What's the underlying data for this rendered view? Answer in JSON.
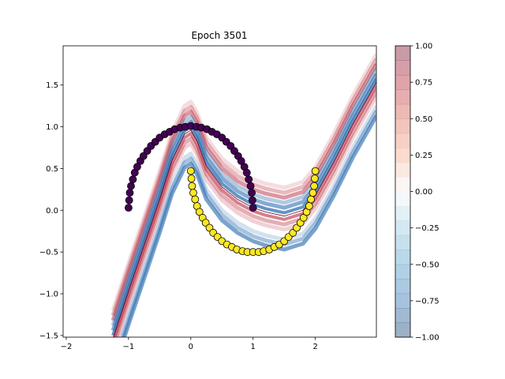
{
  "chart_data": [
    {
      "type": "scatter",
      "title": "Epoch 3501",
      "xlabel": "",
      "ylabel": "",
      "xlim": [
        -2.05,
        2.98
      ],
      "ylim": [
        -1.52,
        1.97
      ],
      "xticks": [
        -2,
        -1,
        0,
        1,
        2
      ],
      "xtick_labels": [
        "−2",
        "−1",
        "0",
        "1",
        "2"
      ],
      "yticks": [
        -1.5,
        -1.0,
        -0.5,
        0.0,
        0.5,
        1.0,
        1.5
      ],
      "ytick_labels": [
        "−1.5",
        "−1.0",
        "−0.5",
        "0.0",
        "0.5",
        "1.0",
        "1.5"
      ],
      "grid": false,
      "series": [
        {
          "marker_color": "#440154",
          "x": [
            -1.0,
            -0.99,
            -0.98,
            -0.96,
            -0.93,
            -0.9,
            -0.86,
            -0.81,
            -0.76,
            -0.7,
            -0.64,
            -0.57,
            -0.5,
            -0.42,
            -0.34,
            -0.26,
            -0.17,
            -0.09,
            0.0,
            0.09,
            0.17,
            0.26,
            0.34,
            0.42,
            0.5,
            0.57,
            0.64,
            0.7,
            0.76,
            0.81,
            0.86,
            0.9,
            0.93,
            0.96,
            0.98,
            0.99,
            1.0
          ],
          "y": [
            0.03,
            0.12,
            0.21,
            0.29,
            0.37,
            0.45,
            0.52,
            0.59,
            0.65,
            0.71,
            0.77,
            0.82,
            0.87,
            0.91,
            0.94,
            0.97,
            0.99,
            1.0,
            1.01,
            1.0,
            0.99,
            0.97,
            0.94,
            0.91,
            0.87,
            0.82,
            0.77,
            0.71,
            0.65,
            0.59,
            0.52,
            0.45,
            0.37,
            0.29,
            0.21,
            0.12,
            0.03
          ]
        },
        {
          "marker_color": "#fde725",
          "x": [
            0.0,
            0.01,
            0.02,
            0.04,
            0.07,
            0.1,
            0.14,
            0.19,
            0.24,
            0.3,
            0.36,
            0.43,
            0.5,
            0.58,
            0.66,
            0.74,
            0.83,
            0.91,
            1.0,
            1.09,
            1.17,
            1.26,
            1.34,
            1.42,
            1.5,
            1.57,
            1.64,
            1.7,
            1.76,
            1.81,
            1.86,
            1.9,
            1.93,
            1.96,
            1.98,
            1.99,
            2.0
          ],
          "y": [
            0.47,
            0.38,
            0.29,
            0.21,
            0.13,
            0.05,
            -0.02,
            -0.09,
            -0.15,
            -0.21,
            -0.27,
            -0.32,
            -0.37,
            -0.41,
            -0.44,
            -0.47,
            -0.49,
            -0.5,
            -0.5,
            -0.5,
            -0.49,
            -0.47,
            -0.44,
            -0.41,
            -0.37,
            -0.32,
            -0.27,
            -0.21,
            -0.15,
            -0.09,
            -0.02,
            0.05,
            0.13,
            0.21,
            0.29,
            0.38,
            0.47
          ]
        }
      ],
      "decision_boundary": {
        "x": [
          -1.25,
          -1.0,
          -0.75,
          -0.5,
          -0.3,
          -0.1,
          0.0,
          0.1,
          0.25,
          0.5,
          0.75,
          1.0,
          1.2,
          1.5,
          1.8,
          2.0,
          2.3,
          2.6,
          2.98
        ],
        "y": [
          -1.52,
          -0.95,
          -0.4,
          0.15,
          0.62,
          0.93,
          0.98,
          0.85,
          0.55,
          0.3,
          0.15,
          0.05,
          0.0,
          -0.05,
          0.02,
          0.2,
          0.6,
          1.05,
          1.55
        ]
      },
      "contour_colors": {
        "positive": "#b2182b",
        "negative": "#2166ac"
      },
      "colorbar": {
        "ticks": [
          1.0,
          0.75,
          0.5,
          0.25,
          0.0,
          -0.25,
          -0.5,
          -0.75,
          -1.0
        ],
        "tick_labels": [
          "1.00",
          "0.75",
          "0.50",
          "0.25",
          "0.00",
          "−0.25",
          "−0.50",
          "−0.75",
          "−1.00"
        ],
        "range": [
          -1.0,
          1.0
        ]
      }
    }
  ]
}
